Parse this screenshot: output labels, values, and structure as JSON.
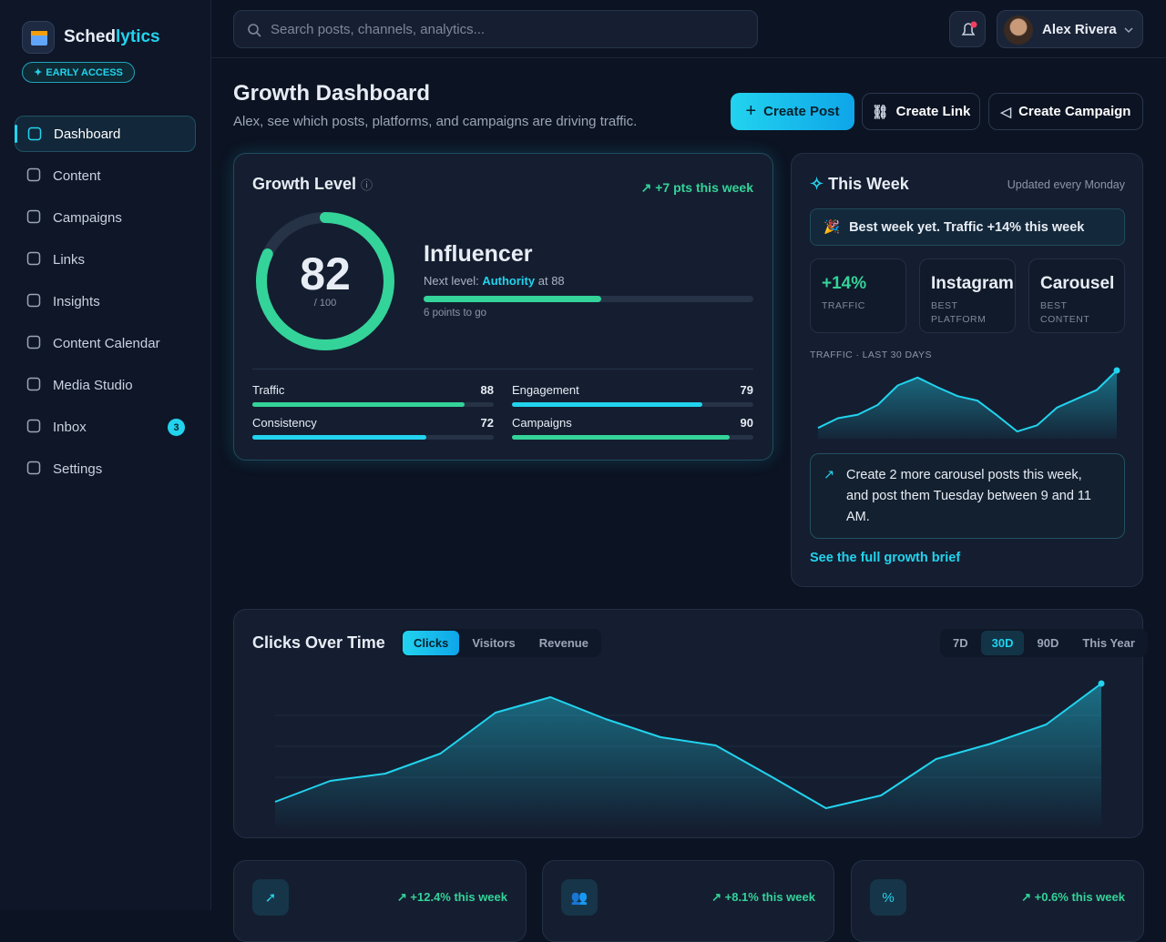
{
  "brand": {
    "name_a": "Sched",
    "name_b": "lytics",
    "badge": "EARLY ACCESS"
  },
  "nav": [
    {
      "label": "Dashboard"
    },
    {
      "label": "Content"
    },
    {
      "label": "Campaigns"
    },
    {
      "label": "Links"
    },
    {
      "label": "Insights"
    },
    {
      "label": "Content Calendar"
    },
    {
      "label": "Media Studio"
    },
    {
      "label": "Inbox",
      "badge": 3
    },
    {
      "label": "Settings"
    }
  ],
  "search_placeholder": "Search posts, channels, analytics...",
  "user": {
    "name": "Alex Rivera"
  },
  "header": {
    "title": "Growth Dashboard",
    "subtitle": "Alex, see which posts, platforms, and campaigns are driving traffic."
  },
  "actions": [
    "Create Post",
    "Create Link",
    "Create Campaign"
  ],
  "growth": {
    "title": "Growth Level",
    "change": "+7 pts this week",
    "score": 82,
    "max": 100,
    "max_label": "/ 100",
    "level": "Influencer",
    "next_prefix": "Next level:",
    "next_level": "Authority",
    "next_suffix": "at 88",
    "progress": 54,
    "to_go": "6 points to go",
    "metrics": [
      {
        "name": "Traffic",
        "value": 88
      },
      {
        "name": "Engagement",
        "value": 79
      },
      {
        "name": "Consistency",
        "value": 72
      },
      {
        "name": "Campaigns",
        "value": 90
      }
    ]
  },
  "this_week": {
    "title": "This Week",
    "updated": "Updated every Monday",
    "banner": "Best week yet. Traffic +14% this week",
    "stats": [
      {
        "value": "+14%",
        "label": "TRAFFIC"
      },
      {
        "value": "Instagram",
        "label": "BEST PLATFORM"
      },
      {
        "value": "Carousel",
        "label": "BEST CONTENT"
      }
    ],
    "spark_label": "TRAFFIC · LAST 30 DAYS",
    "spark": [
      8,
      19,
      23,
      34,
      56,
      65,
      54,
      44,
      39,
      22,
      4,
      11,
      31,
      41,
      51,
      73
    ],
    "tip": "Create 2 more carousel posts this week, and post them Tuesday between 9 and 11 AM.",
    "link": "See the full growth brief"
  },
  "clicks": {
    "title": "Clicks Over Time",
    "tabs": [
      "Clicks",
      "Visitors",
      "Revenue"
    ],
    "ranges": [
      "7D",
      "30D",
      "90D",
      "This Year"
    ],
    "values": [
      19,
      42,
      50,
      72,
      117,
      134,
      110,
      90,
      81,
      47,
      12,
      26,
      66,
      83,
      104,
      149
    ]
  },
  "kpis": [
    "+12.4% this week",
    "+8.1% this week",
    "+0.6% this week"
  ]
}
